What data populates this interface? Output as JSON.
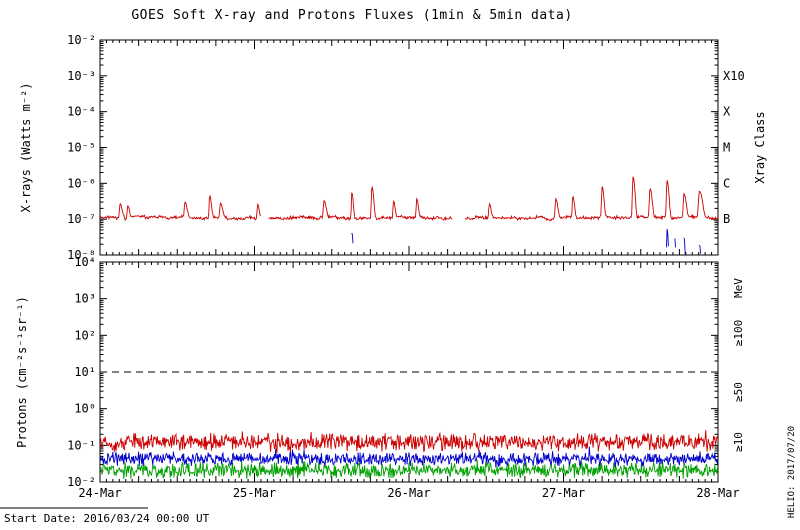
{
  "title": "GOES Soft X-ray and Protons Fluxes   (1min & 5min data)",
  "footer": {
    "start_date": "Start Date: 2016/03/24 00:00 UT"
  },
  "credit": "HELIO: 2017/07/20",
  "colors": {
    "red": "#cc0000",
    "blue": "#0000cc",
    "green": "#00a000",
    "axis": "#000000"
  },
  "x_axis": {
    "tick_labels": [
      "24-Mar",
      "25-Mar",
      "26-Mar",
      "27-Mar",
      "28-Mar"
    ],
    "range_days": [
      0,
      4
    ]
  },
  "chart_data": [
    {
      "type": "line",
      "name": "xray-flux-panel",
      "ylabel": "X-rays (Watts m⁻²)",
      "right_axis_label": "Xray Class",
      "ylim": [
        1e-08,
        0.01
      ],
      "ytick_exponents": [
        -2,
        -3,
        -4,
        -5,
        -6,
        -7,
        -8
      ],
      "class_labels": [
        {
          "label": "X10",
          "level": 0.001
        },
        {
          "label": "X",
          "level": 0.0001
        },
        {
          "label": "M",
          "level": 1e-05
        },
        {
          "label": "C",
          "level": 1e-06
        },
        {
          "label": "B",
          "level": 1e-07
        }
      ],
      "series": [
        {
          "name": "xray-long",
          "color": "#cc0000",
          "baseline": 1.1e-07,
          "noise": {
            "walk": 0.025,
            "jitter": 0.05
          },
          "gaps": [
            [
              1.04,
              1.09
            ],
            [
              2.28,
              2.36
            ]
          ],
          "flares": [
            {
              "t": 0.13,
              "peak": 1.6e-07,
              "w": 0.015
            },
            {
              "t": 0.18,
              "peak": 1.4e-07,
              "w": 0.012
            },
            {
              "t": 0.55,
              "peak": 1.9e-07,
              "w": 0.015
            },
            {
              "t": 0.71,
              "peak": 3.5e-07,
              "w": 0.012
            },
            {
              "t": 0.78,
              "peak": 1.7e-07,
              "w": 0.015
            },
            {
              "t": 1.02,
              "peak": 1.5e-07,
              "w": 0.012
            },
            {
              "t": 1.45,
              "peak": 2.2e-07,
              "w": 0.015
            },
            {
              "t": 1.63,
              "peak": 4.5e-07,
              "w": 0.01
            },
            {
              "t": 1.76,
              "peak": 7e-07,
              "w": 0.012
            },
            {
              "t": 1.9,
              "peak": 2e-07,
              "w": 0.012
            },
            {
              "t": 2.05,
              "peak": 2.6e-07,
              "w": 0.012
            },
            {
              "t": 2.52,
              "peak": 1.6e-07,
              "w": 0.012
            },
            {
              "t": 2.95,
              "peak": 2.6e-07,
              "w": 0.014
            },
            {
              "t": 3.06,
              "peak": 3.2e-07,
              "w": 0.012
            },
            {
              "t": 3.25,
              "peak": 7e-07,
              "w": 0.012
            },
            {
              "t": 3.45,
              "peak": 1.4e-06,
              "w": 0.012
            },
            {
              "t": 3.56,
              "peak": 6e-07,
              "w": 0.014
            },
            {
              "t": 3.67,
              "peak": 1.1e-06,
              "w": 0.012
            },
            {
              "t": 3.78,
              "peak": 4e-07,
              "w": 0.015
            },
            {
              "t": 3.88,
              "peak": 5e-07,
              "w": 0.02
            }
          ]
        },
        {
          "name": "xray-short",
          "color": "#0000cc",
          "baseline": 4e-09,
          "hide_below_range": true,
          "noise": {
            "walk": 0.02,
            "jitter": 0.05
          },
          "flares": [
            {
              "t": 1.63,
              "peak": 4e-08,
              "w": 0.008
            },
            {
              "t": 3.67,
              "peak": 5e-08,
              "w": 0.008
            },
            {
              "t": 3.72,
              "peak": 2.5e-08,
              "w": 0.006
            },
            {
              "t": 3.78,
              "peak": 3e-08,
              "w": 0.006
            },
            {
              "t": 3.88,
              "peak": 1.6e-08,
              "w": 0.008
            }
          ]
        }
      ]
    },
    {
      "type": "line",
      "name": "proton-flux-panel",
      "ylabel": "Protons (cm⁻²s⁻¹sr⁻¹)",
      "right_axis_labels": [
        {
          "label": "MeV",
          "color": "#000000"
        },
        {
          "label": "≥100",
          "color": "#00a000"
        },
        {
          "label": "≥50",
          "color": "#0000cc"
        },
        {
          "label": "≥10",
          "color": "#cc0000"
        }
      ],
      "ylim": [
        0.01,
        10000.0
      ],
      "ytick_exponents": [
        4,
        3,
        2,
        1,
        0,
        -1,
        -2
      ],
      "threshold": {
        "level": 10,
        "style": "dashed"
      },
      "series": [
        {
          "name": "protons-ge100",
          "color": "#00a000",
          "baseline": 0.021,
          "noise": {
            "walk": 0.015,
            "jitter": 0.25,
            "spike": 0.15
          }
        },
        {
          "name": "protons-ge50",
          "color": "#0000cc",
          "baseline": 0.042,
          "noise": {
            "walk": 0.015,
            "jitter": 0.22,
            "spike": 0.2
          }
        },
        {
          "name": "protons-ge10",
          "color": "#cc0000",
          "baseline": 0.12,
          "noise": {
            "walk": 0.015,
            "jitter": 0.28,
            "spike": 0.35
          }
        }
      ]
    }
  ],
  "render": {
    "seed": 20160324,
    "samples_per_day": 240
  }
}
